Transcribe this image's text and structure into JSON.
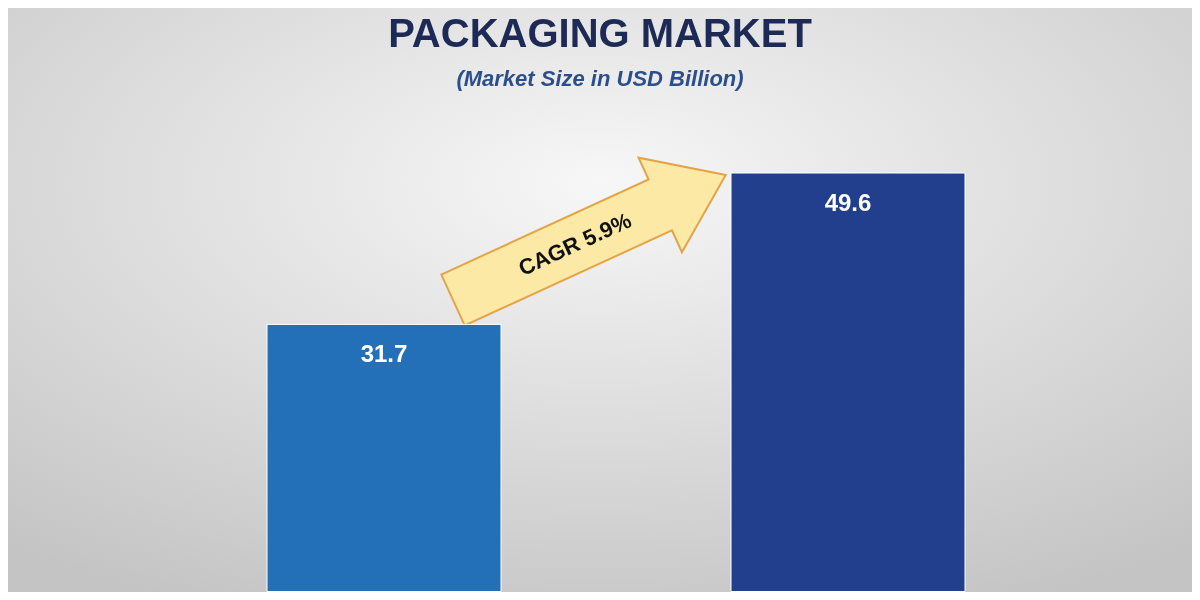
{
  "chart_data": {
    "type": "bar",
    "title": "PACKAGING MARKET",
    "subtitle": "(Market Size in USD Billion)",
    "categories": [
      null,
      null
    ],
    "values": [
      31.7,
      49.6
    ],
    "colors": [
      "#2470b8",
      "#213f8c"
    ],
    "data_labels": true,
    "annotations": [
      "CAGR 5.9%"
    ]
  }
}
